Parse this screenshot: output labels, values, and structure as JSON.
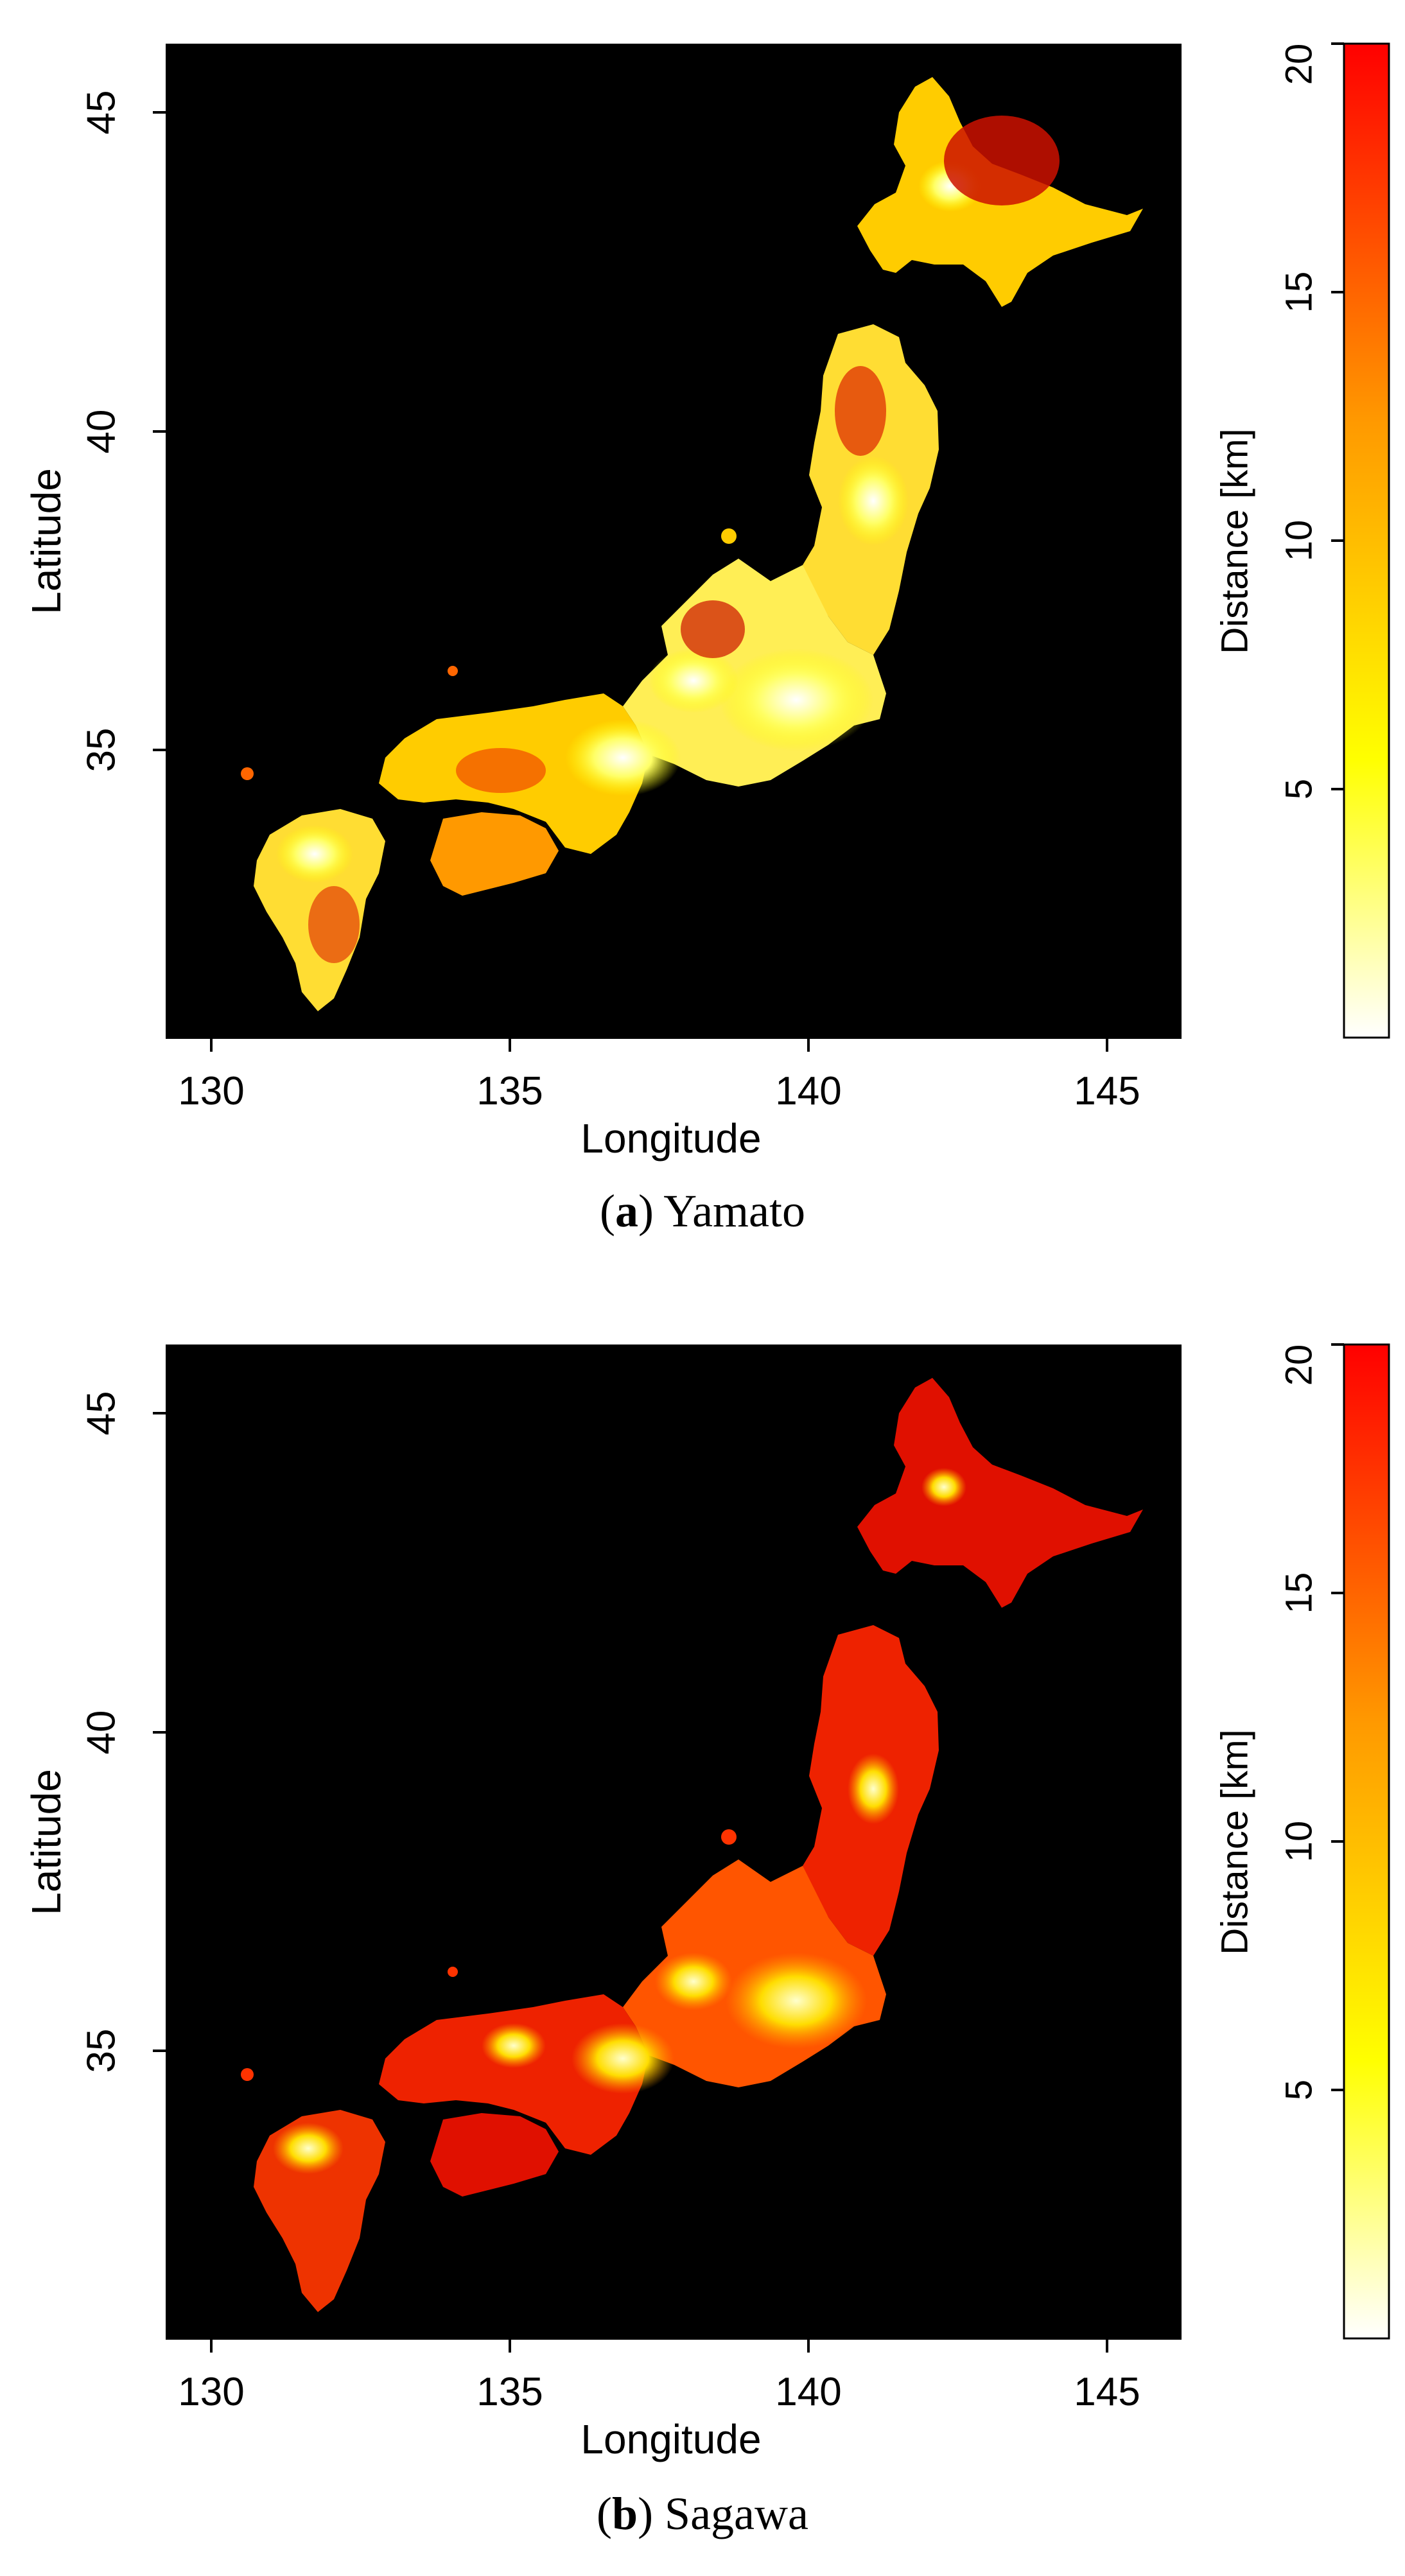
{
  "panels": [
    {
      "caption_letter": "a",
      "caption_name": "Yamato",
      "xlabel": "Longitude",
      "ylabel": "Latitude",
      "x_ticks": [
        "130",
        "135",
        "140",
        "145"
      ],
      "y_ticks": [
        "45",
        "40",
        "35"
      ],
      "colorbar_label": "Distance [km]",
      "colorbar_ticks": [
        "20",
        "15",
        "10",
        "5"
      ]
    },
    {
      "caption_letter": "b",
      "caption_name": "Sagawa",
      "xlabel": "Longitude",
      "ylabel": "Latitude",
      "x_ticks": [
        "130",
        "135",
        "140",
        "145"
      ],
      "y_ticks": [
        "45",
        "40",
        "35"
      ],
      "colorbar_label": "Distance [km]",
      "colorbar_ticks": [
        "20",
        "15",
        "10",
        "5"
      ]
    }
  ],
  "colors": {
    "background": "#000000",
    "scale": [
      "#ffffff",
      "#ffff00",
      "#ff9900",
      "#ff0000"
    ]
  },
  "chart_data": [
    {
      "type": "heatmap",
      "map": "Japan",
      "xlim": [
        127.8,
        146.8
      ],
      "ylim": [
        30.4,
        46.1
      ],
      "x_ticks": [
        130,
        135,
        140,
        145
      ],
      "y_ticks": [
        35,
        40,
        45
      ],
      "colorbar_range": [
        0,
        20
      ],
      "colorbar_ticks": [
        5,
        10,
        15,
        20
      ]
    },
    {
      "type": "heatmap",
      "map": "Japan",
      "xlim": [
        127.8,
        146.8
      ],
      "ylim": [
        30.4,
        46.1
      ],
      "x_ticks": [
        130,
        135,
        140,
        145
      ],
      "y_ticks": [
        35,
        40,
        45
      ],
      "colorbar_range": [
        0,
        20
      ],
      "colorbar_ticks": [
        5,
        10,
        15,
        20
      ]
    }
  ]
}
